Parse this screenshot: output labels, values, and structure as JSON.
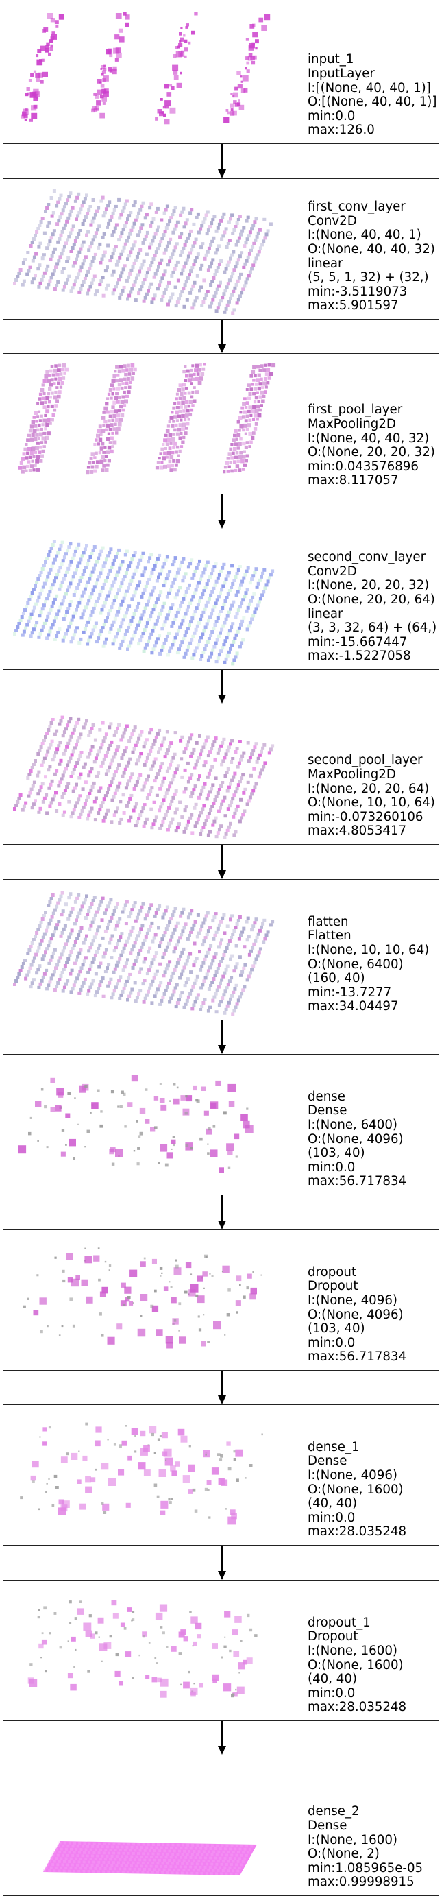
{
  "layers": [
    {
      "name": "input_1",
      "type": "InputLayer",
      "lines": [
        "I:[(None, 40, 40, 1)]",
        "O:[(None, 40, 40, 1)]",
        "min:0.0",
        "max:126.0"
      ],
      "viz": "strips",
      "color": "#cc3fcc",
      "accent": "#cc3fcc",
      "density": 0.2
    },
    {
      "name": "first_conv_layer",
      "type": "Conv2D",
      "lines": [
        "I:(None, 40, 40, 1)",
        "O:(None, 40, 40, 32)",
        "linear",
        "(5, 5, 1, 32) + (32,)",
        "min:-3.5119073",
        "max:5.901597"
      ],
      "viz": "grid",
      "color": "#9a98c4",
      "accent": "#c86fce",
      "density": 0.85
    },
    {
      "name": "first_pool_layer",
      "type": "MaxPooling2D",
      "lines": [
        "I:(None, 40, 40, 32)",
        "O:(None, 20, 20, 32)",
        "min:0.043576896",
        "max:8.117057"
      ],
      "viz": "wide-strips",
      "color": "#c06ac6",
      "accent": "#d986dc",
      "density": 0.9
    },
    {
      "name": "second_conv_layer",
      "type": "Conv2D",
      "lines": [
        "I:(None, 20, 20, 32)",
        "O:(None, 20, 20, 64)",
        "linear",
        "(3, 3, 32, 64) + (64,)",
        "min:-15.667447",
        "max:-1.5227058"
      ],
      "viz": "grid",
      "color": "#7c8ce8",
      "accent": "#c6ecd8",
      "density": 0.95
    },
    {
      "name": "second_pool_layer",
      "type": "MaxPooling2D",
      "lines": [
        "I:(None, 20, 20, 64)",
        "O:(None, 10, 10, 64)",
        "min:-0.073260106",
        "max:4.8053417"
      ],
      "viz": "grid",
      "color": "#b088c0",
      "accent": "#d64fd4",
      "density": 0.8
    },
    {
      "name": "flatten",
      "type": "Flatten",
      "lines": [
        "I:(None, 10, 10, 64)",
        "O:(None, 6400)",
        "(160, 40)",
        "min:-13.7277",
        "max:34.04497"
      ],
      "viz": "grid",
      "color": "#9a98c4",
      "accent": "#c86fce",
      "density": 0.85
    },
    {
      "name": "dense",
      "type": "Dense",
      "lines": [
        "I:(None, 6400)",
        "O:(None, 4096)",
        "(103, 40)",
        "min:0.0",
        "max:56.717834"
      ],
      "viz": "scatter",
      "color": "#cf5fd0",
      "accent": "#999999",
      "density": 0.12
    },
    {
      "name": "dropout",
      "type": "Dropout",
      "lines": [
        "I:(None, 4096)",
        "O:(None, 4096)",
        "(103, 40)",
        "min:0.0",
        "max:56.717834"
      ],
      "viz": "scatter",
      "color": "#cf5fd0",
      "accent": "#999999",
      "density": 0.12
    },
    {
      "name": "dense_1",
      "type": "Dense",
      "lines": [
        "I:(None, 4096)",
        "O:(None, 1600)",
        "(40, 40)",
        "min:0.0",
        "max:28.035248"
      ],
      "viz": "scatter",
      "color": "#e184e4",
      "accent": "#a0a0a0",
      "density": 0.1
    },
    {
      "name": "dropout_1",
      "type": "Dropout",
      "lines": [
        "I:(None, 1600)",
        "O:(None, 1600)",
        "(40, 40)",
        "min:0.0",
        "max:28.035248"
      ],
      "viz": "scatter",
      "color": "#e184e4",
      "accent": "#a0a0a0",
      "density": 0.1
    },
    {
      "name": "dense_2",
      "type": "Dense",
      "lines": [
        "I:(None, 1600)",
        "O:(None, 2)",
        "min:1.085965e-05",
        "max:0.99998915"
      ],
      "viz": "solid",
      "color": "#f06af0",
      "accent": "#f7a8f7",
      "density": 1.0
    }
  ]
}
